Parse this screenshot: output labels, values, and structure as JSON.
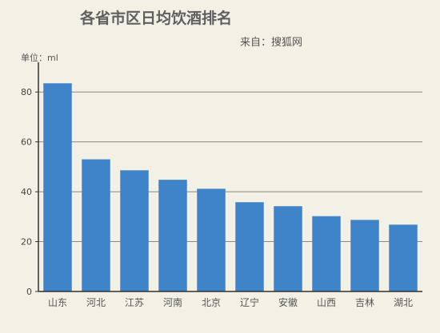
{
  "chart_data": {
    "type": "bar",
    "title": "各省市区日均饮酒排名",
    "subtitle": "来自：搜狐网",
    "ylabel": "单位：ml",
    "xlabel": "",
    "categories": [
      "山东",
      "河北",
      "江苏",
      "河南",
      "北京",
      "辽宁",
      "安徽",
      "山西",
      "吉林",
      "湖北"
    ],
    "values": [
      83.5,
      53,
      48.6,
      44.8,
      41.2,
      35.8,
      34.2,
      30.2,
      28.7,
      26.8
    ],
    "ylim": [
      0,
      90
    ],
    "yticks": [
      "0",
      "20",
      "40",
      "60",
      "80"
    ],
    "grid": true,
    "bar_color": "#3f83c9"
  }
}
